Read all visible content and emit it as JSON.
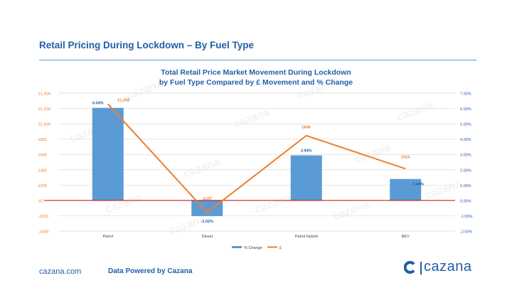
{
  "page": {
    "title": "Retail Pricing During Lockdown – By Fuel Type",
    "footer_url": "cazana.com",
    "footer_powered": "Data Powered by Cazana",
    "brand": "cazana",
    "watermark": "cazana"
  },
  "colors": {
    "brand_blue": "#1f5fa8",
    "bar": "#5b9bd5",
    "line": "#ed7d31",
    "zero_line": "#c00000"
  },
  "chart_data": {
    "type": "bar+line",
    "title_line1": "Total Retail Price Market Movement During Lockdown",
    "title_line2": "by Fuel Type Compared by £ Movement and % Change",
    "categories": [
      "Petrol",
      "Diesel",
      "Petrol Hybrid",
      "BEV"
    ],
    "series": [
      {
        "name": "% Change",
        "type": "bar",
        "axis": "right",
        "values": [
          6.04,
          -1.02,
          2.94,
          1.4
        ],
        "labels": [
          "6.04%",
          "-1.02%",
          "2.94%",
          "1.40%"
        ]
      },
      {
        "name": "£",
        "type": "line",
        "axis": "left",
        "values": [
          1258,
          -157,
          846,
          414
        ],
        "labels": [
          "£1,258",
          "-£157",
          "£846",
          "£414"
        ]
      }
    ],
    "left_axis": {
      "min": -400,
      "max": 1400,
      "ticks": [
        1400,
        1200,
        1000,
        800,
        600,
        400,
        200,
        0,
        -200,
        -400
      ],
      "tick_labels": [
        "£1,400",
        "£1,200",
        "£1,000",
        "£800",
        "£600",
        "£400",
        "£200",
        "£0",
        "-£200",
        "-£400"
      ]
    },
    "right_axis": {
      "min": -2,
      "max": 7,
      "ticks": [
        7,
        6,
        5,
        4,
        3,
        2,
        1,
        0,
        -1,
        -2
      ],
      "tick_labels": [
        "7.00%",
        "6.00%",
        "5.00%",
        "4.00%",
        "3.00%",
        "2.00%",
        "1.00%",
        "0.00%",
        "-1.00%",
        "-2.00%"
      ]
    },
    "legend": [
      "% Change",
      "£"
    ],
    "legend_position": "bottom"
  }
}
